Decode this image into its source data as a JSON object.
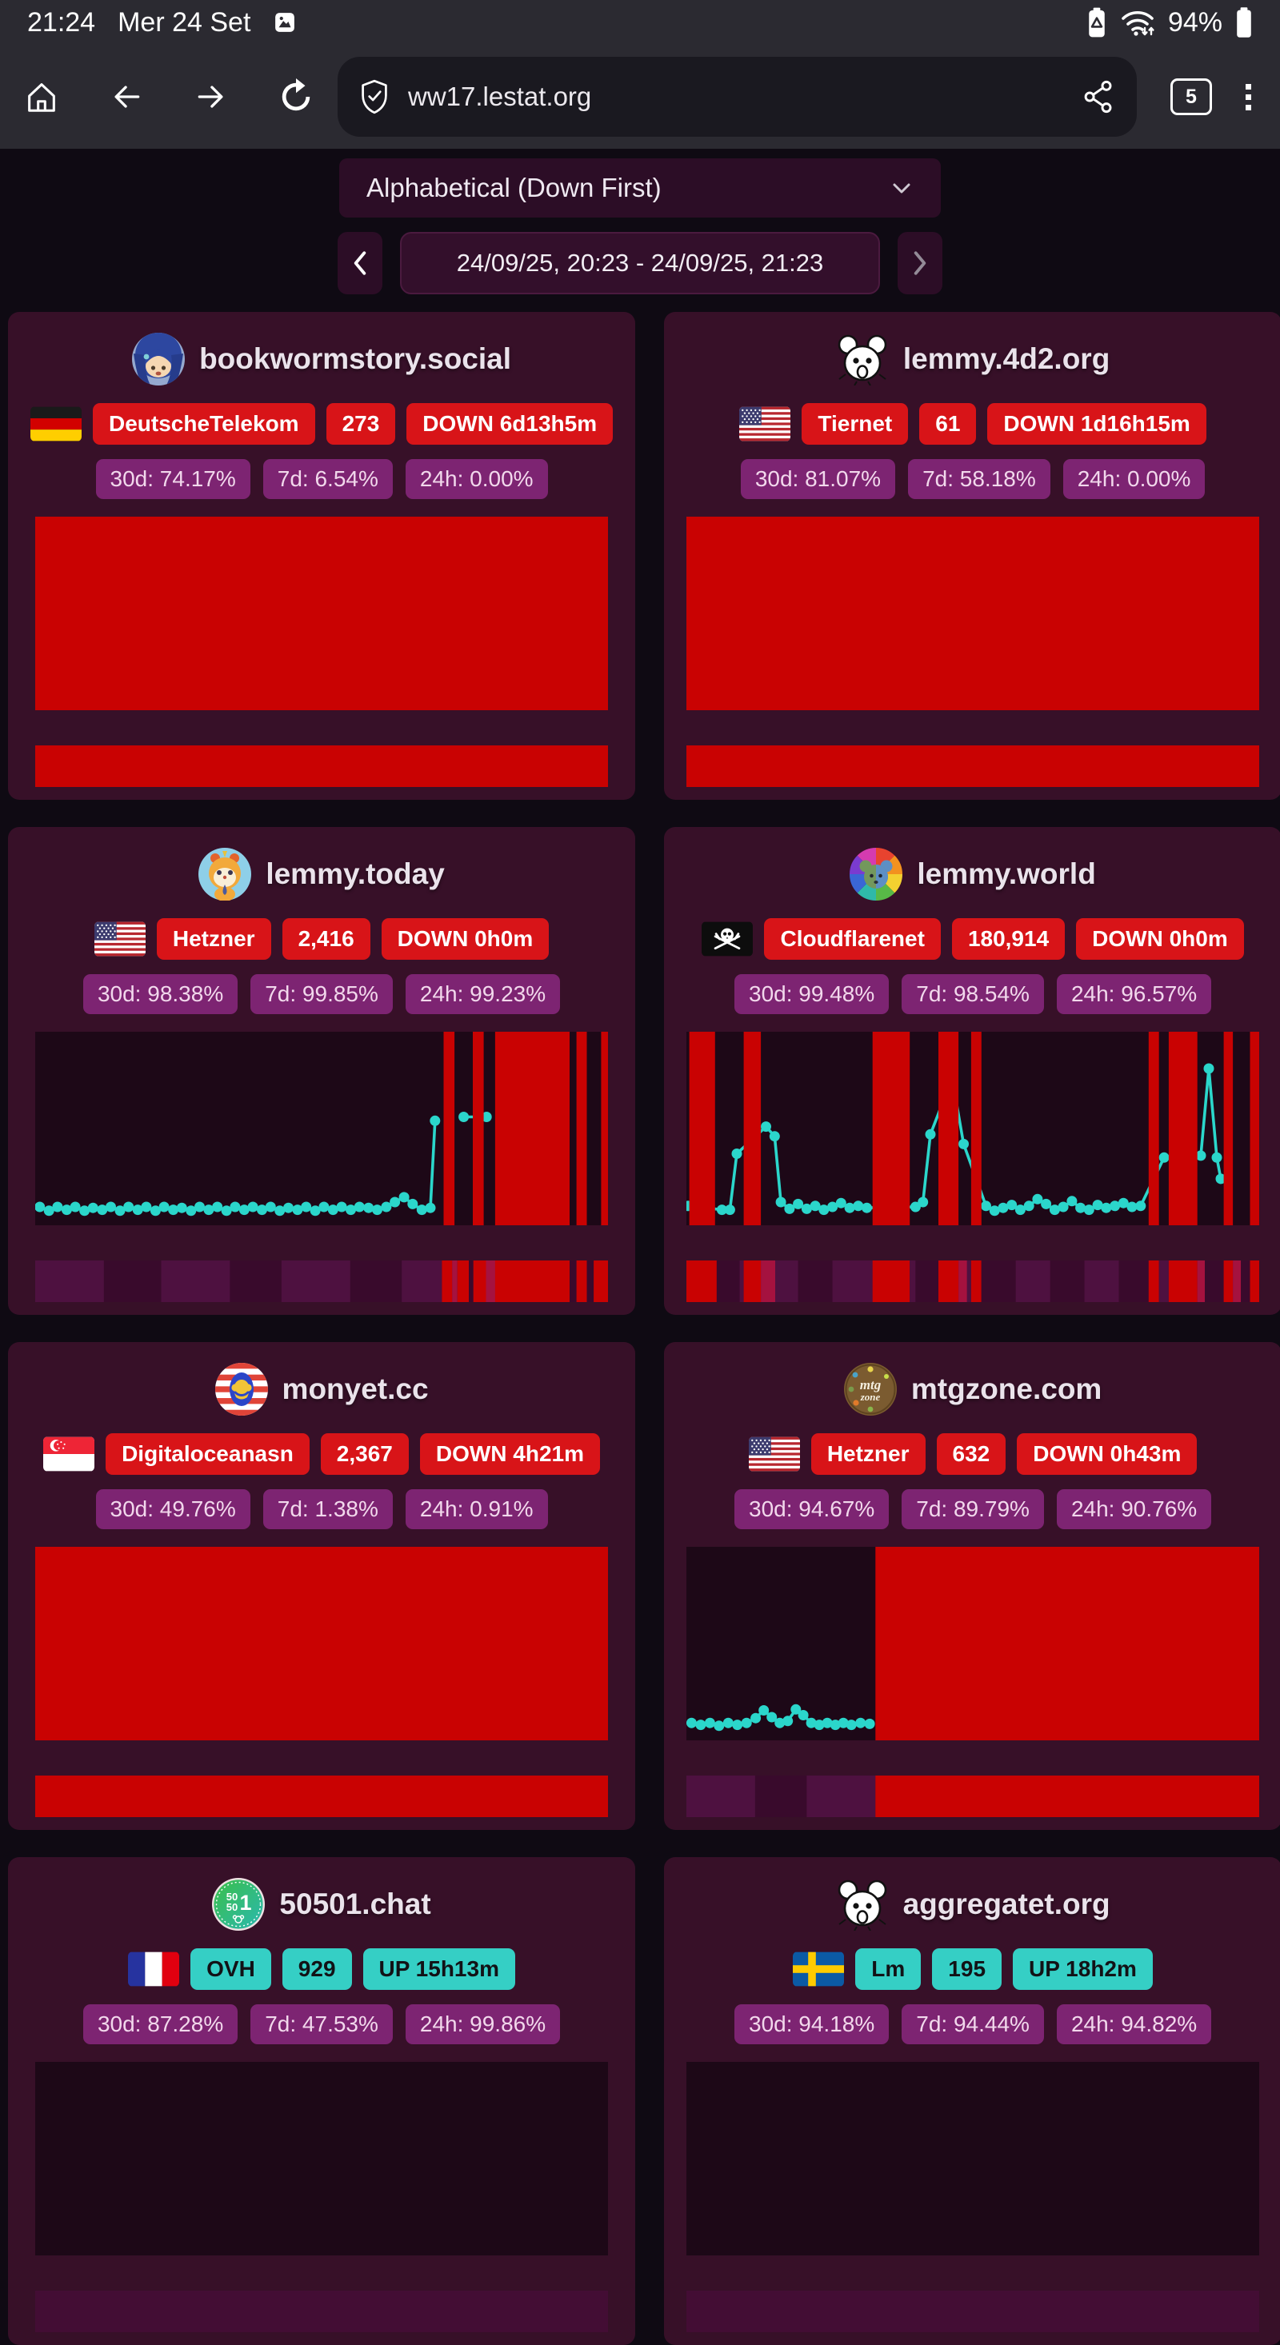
{
  "colors": {
    "page_bg": "#0f0a13",
    "bar_bg": "#2b2a31",
    "pill_bg": "#1a1920",
    "card_bg": "#371028",
    "badge_red": "#d81418",
    "badge_teal": "#35cfc5",
    "badge_purple": "#7d2472",
    "chart_red": "#c90202",
    "plot_bg": "#1d0817",
    "line_teal": "#2bd6cb",
    "heat_base": "#430d34",
    "heat_dark": "#390a2c",
    "heat_light": "#4e1140",
    "heat_crimson": "#a5123f",
    "control_bg": "#2c0d26",
    "date_border": "#4b1a3f"
  },
  "status_bar": {
    "time": "21:24",
    "date": "Mer 24 Set",
    "battery": "94%"
  },
  "toolbar": {
    "url": "ww17.lestat.org",
    "tab_count": "5"
  },
  "controls": {
    "sort_label": "Alphabetical (Down First)",
    "date_range": "24/09/25, 20:23 - 24/09/25, 21:23"
  },
  "cards": [
    {
      "name": "bookwormstory.social",
      "avatar": "bookworm",
      "flag": "de",
      "asn": "DeutscheTelekom",
      "users": "273",
      "status": "DOWN 6d13h5m",
      "status_kind": "down",
      "stats": [
        "30d: 74.17%",
        "7d: 6.54%",
        "24h: 0.00%"
      ],
      "chart": {
        "bars": [
          [
            0,
            100
          ]
        ],
        "line": []
      },
      "heatmap": [
        [
          0,
          100,
          "red"
        ]
      ]
    },
    {
      "name": "lemmy.4d2.org",
      "avatar": "mouse",
      "flag": "us",
      "asn": "Tiernet",
      "users": "61",
      "status": "DOWN 1d16h15m",
      "status_kind": "down",
      "stats": [
        "30d: 81.07%",
        "7d: 58.18%",
        "24h: 0.00%"
      ],
      "chart": {
        "bars": [
          [
            0,
            100
          ]
        ],
        "line": []
      },
      "heatmap": [
        [
          0,
          100,
          "red"
        ]
      ]
    },
    {
      "name": "lemmy.today",
      "avatar": "hamster",
      "flag": "us",
      "asn": "Hetzner",
      "users": "2,416",
      "status": "DOWN 0h0m",
      "status_kind": "down",
      "stats": [
        "30d: 98.38%",
        "7d: 99.85%",
        "24h: 99.23%"
      ],
      "chart": {
        "bars": [
          [
            71.3,
            1.9
          ],
          [
            76.4,
            1.9
          ],
          [
            80.3,
            13.0
          ],
          [
            94.5,
            1.8
          ],
          [
            98.8,
            1.2
          ]
        ],
        "line": [
          [
            [
              0.8,
              90.5
            ],
            [
              2.4,
              92.5
            ],
            [
              3.9,
              90.5
            ],
            [
              5.5,
              92
            ],
            [
              7,
              90.5
            ],
            [
              8.6,
              92.5
            ],
            [
              10.1,
              91
            ],
            [
              11.7,
              92
            ],
            [
              13.2,
              90.5
            ],
            [
              14.8,
              92.5
            ],
            [
              16.3,
              90.5
            ],
            [
              17.9,
              92
            ],
            [
              19.4,
              90.5
            ],
            [
              21,
              92.5
            ],
            [
              22.5,
              90.5
            ],
            [
              24.1,
              92
            ],
            [
              25.6,
              91
            ],
            [
              27.2,
              92.5
            ],
            [
              28.7,
              90.5
            ],
            [
              30.3,
              92
            ],
            [
              31.8,
              90.5
            ],
            [
              33.4,
              92.5
            ],
            [
              34.9,
              90.5
            ],
            [
              36.5,
              92
            ],
            [
              38,
              90.5
            ],
            [
              39.6,
              92
            ],
            [
              41.1,
              90.5
            ],
            [
              42.7,
              92.5
            ],
            [
              44.2,
              91
            ],
            [
              45.8,
              92
            ],
            [
              47.3,
              90.5
            ],
            [
              48.9,
              92.5
            ],
            [
              50.4,
              90.5
            ],
            [
              52,
              92
            ],
            [
              53.5,
              90.5
            ],
            [
              55.1,
              92
            ],
            [
              56.6,
              90.5
            ],
            [
              58.2,
              91
            ],
            [
              59.7,
              92
            ],
            [
              61.3,
              90.5
            ],
            [
              62.8,
              88
            ],
            [
              64.4,
              85.5
            ],
            [
              65.9,
              89
            ],
            [
              67.5,
              92
            ],
            [
              69,
              91
            ],
            [
              69.8,
              46
            ]
          ],
          [
            [
              74.8,
              44
            ],
            [
              78.8,
              44
            ]
          ],
          [
            [
              92.3,
              72
            ]
          ]
        ]
      },
      "heatmap": [
        [
          0,
          12,
          "p2"
        ],
        [
          12,
          10,
          "p1"
        ],
        [
          22,
          12,
          "p2"
        ],
        [
          34,
          9,
          "p1"
        ],
        [
          43,
          12,
          "p2"
        ],
        [
          55,
          9,
          "p1"
        ],
        [
          64,
          7,
          "p2"
        ],
        [
          71,
          1.8,
          "red"
        ],
        [
          72.8,
          0.9,
          "crimson"
        ],
        [
          73.7,
          2,
          "red"
        ],
        [
          75.7,
          0.8,
          "p1"
        ],
        [
          76.5,
          2.2,
          "red"
        ],
        [
          78.7,
          1.6,
          "crimson"
        ],
        [
          80.3,
          13,
          "red"
        ],
        [
          93.3,
          1.2,
          "p1"
        ],
        [
          94.5,
          1.8,
          "red"
        ],
        [
          96.3,
          1.2,
          "p1"
        ],
        [
          97.5,
          2.5,
          "red"
        ]
      ]
    },
    {
      "name": "lemmy.world",
      "avatar": "world",
      "flag": "pirate",
      "asn": "Cloudflarenet",
      "users": "180,914",
      "status": "DOWN 0h0m",
      "status_kind": "down",
      "stats": [
        "30d: 99.48%",
        "7d: 98.54%",
        "24h: 96.57%"
      ],
      "chart": {
        "bars": [
          [
            0.5,
            4.5
          ],
          [
            10,
            3
          ],
          [
            32.5,
            6.5
          ],
          [
            44,
            3.5
          ],
          [
            49.7,
            1.8
          ],
          [
            80.7,
            1.8
          ],
          [
            84.2,
            5
          ],
          [
            93.8,
            1.6
          ],
          [
            98.4,
            1.6
          ]
        ],
        "line": [
          [
            [
              0.3,
              90
            ],
            [
              6.2,
              92
            ],
            [
              7.6,
              92
            ],
            [
              8.8,
              63
            ],
            [
              13.9,
              49
            ],
            [
              15.4,
              54
            ],
            [
              16.5,
              88
            ],
            [
              18,
              91.5
            ],
            [
              19.5,
              89
            ],
            [
              21,
              91.5
            ],
            [
              22.5,
              90
            ],
            [
              24,
              92
            ],
            [
              25.5,
              90.5
            ],
            [
              27,
              88.5
            ],
            [
              28.5,
              91
            ],
            [
              30,
              90
            ],
            [
              31.5,
              91
            ],
            [
              40,
              90.5
            ],
            [
              41.3,
              88
            ],
            [
              42.6,
              53
            ],
            [
              46.4,
              24
            ],
            [
              48.4,
              58
            ],
            [
              52.3,
              90
            ],
            [
              53.8,
              92.5
            ],
            [
              55.3,
              91
            ],
            [
              56.8,
              89.5
            ],
            [
              58.3,
              92
            ],
            [
              59.8,
              90
            ],
            [
              61.3,
              86.5
            ],
            [
              62.8,
              89
            ],
            [
              64.3,
              92
            ],
            [
              65.8,
              90.5
            ],
            [
              67.3,
              87.5
            ],
            [
              68.8,
              91
            ],
            [
              70.3,
              92
            ],
            [
              71.8,
              89.5
            ],
            [
              73.3,
              91
            ],
            [
              74.8,
              90
            ],
            [
              76.3,
              88.5
            ],
            [
              77.8,
              90.5
            ],
            [
              79.3,
              90
            ],
            [
              83.4,
              65
            ],
            [
              89.8,
              64
            ],
            [
              91.2,
              19
            ],
            [
              92.6,
              65
            ],
            [
              93.3,
              76
            ]
          ]
        ]
      },
      "heatmap": [
        [
          0,
          5.3,
          "red"
        ],
        [
          5.3,
          4,
          "p1"
        ],
        [
          9.3,
          0.7,
          "p2"
        ],
        [
          10,
          3,
          "red"
        ],
        [
          13,
          2.5,
          "crimson"
        ],
        [
          15.5,
          4,
          "p2"
        ],
        [
          19.5,
          6,
          "p1"
        ],
        [
          25.5,
          7,
          "p2"
        ],
        [
          32.5,
          6.5,
          "red"
        ],
        [
          39,
          1,
          "p2"
        ],
        [
          40,
          4,
          "p1"
        ],
        [
          44,
          3.5,
          "red"
        ],
        [
          47.5,
          1.5,
          "crimson"
        ],
        [
          49,
          0.7,
          "p2"
        ],
        [
          49.7,
          1.8,
          "red"
        ],
        [
          51.5,
          6,
          "p1"
        ],
        [
          57.5,
          6,
          "p2"
        ],
        [
          63.5,
          6,
          "p1"
        ],
        [
          69.5,
          6,
          "p2"
        ],
        [
          75.5,
          5.2,
          "p1"
        ],
        [
          80.7,
          1.8,
          "red"
        ],
        [
          82.5,
          1.7,
          "p2"
        ],
        [
          84.2,
          5,
          "red"
        ],
        [
          89.2,
          1.3,
          "crimson"
        ],
        [
          90.5,
          3.3,
          "p1"
        ],
        [
          93.8,
          1.6,
          "red"
        ],
        [
          95.4,
          1.4,
          "crimson"
        ],
        [
          96.8,
          1.6,
          "p1"
        ],
        [
          98.4,
          1.6,
          "red"
        ]
      ]
    },
    {
      "name": "monyet.cc",
      "avatar": "monyet",
      "flag": "sg",
      "asn": "Digitaloceanasn",
      "users": "2,367",
      "status": "DOWN 4h21m",
      "status_kind": "down",
      "stats": [
        "30d: 49.76%",
        "7d: 1.38%",
        "24h: 0.91%"
      ],
      "chart": {
        "bars": [
          [
            0,
            100
          ]
        ],
        "line": []
      },
      "heatmap": [
        [
          0,
          100,
          "red"
        ]
      ]
    },
    {
      "name": "mtgzone.com",
      "avatar": "mtg",
      "flag": "us",
      "asn": "Hetzner",
      "users": "632",
      "status": "DOWN 0h43m",
      "status_kind": "down",
      "stats": [
        "30d: 94.67%",
        "7d: 89.79%",
        "24h: 90.76%"
      ],
      "chart": {
        "bars": [
          [
            33,
            67
          ]
        ],
        "line": [
          [
            [
              0.9,
              91
            ],
            [
              2.5,
              92
            ],
            [
              4.1,
              91
            ],
            [
              5.7,
              92.5
            ],
            [
              7.3,
              91
            ],
            [
              8.9,
              92
            ],
            [
              10.5,
              91
            ],
            [
              12.1,
              88.5
            ],
            [
              13.5,
              84.5
            ],
            [
              14.9,
              88
            ],
            [
              16.3,
              91
            ],
            [
              17.7,
              90
            ],
            [
              19.1,
              84
            ],
            [
              20.4,
              87
            ],
            [
              21.8,
              91
            ],
            [
              23.2,
              92
            ],
            [
              24.6,
              91
            ],
            [
              26,
              92
            ],
            [
              27.4,
              91
            ],
            [
              28.8,
              92
            ],
            [
              30.4,
              91
            ],
            [
              32,
              91.5
            ]
          ]
        ]
      },
      "heatmap": [
        [
          0,
          12,
          "p2"
        ],
        [
          12,
          9,
          "p1"
        ],
        [
          21,
          12,
          "p2"
        ],
        [
          33,
          67,
          "red"
        ]
      ]
    },
    {
      "name": "50501.chat",
      "avatar": "fifty",
      "flag": "fr",
      "asn": "OVH",
      "users": "929",
      "status": "UP 15h13m",
      "status_kind": "up",
      "stats": [
        "30d: 87.28%",
        "7d: 47.53%",
        "24h: 99.86%"
      ],
      "chart": null,
      "heatmap": null
    },
    {
      "name": "aggregatet.org",
      "avatar": "mouse",
      "flag": "se",
      "asn": "Lm",
      "users": "195",
      "status": "UP 18h2m",
      "status_kind": "up",
      "stats": [
        "30d: 94.18%",
        "7d: 94.44%",
        "24h: 94.82%"
      ],
      "chart": null,
      "heatmap": null
    }
  ]
}
